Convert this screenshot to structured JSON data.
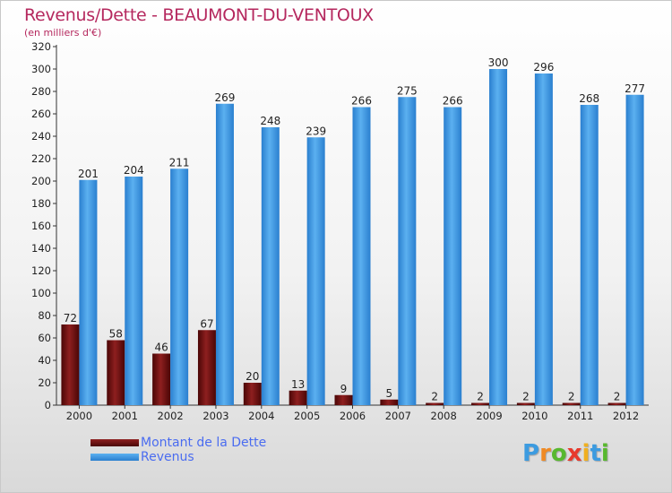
{
  "title": "Revenus/Dette - BEAUMONT-DU-VENTOUX",
  "subtitle": "(en milliers d'€)",
  "logo": {
    "letters": [
      "P",
      "r",
      "o",
      "x",
      "i",
      "t",
      "i"
    ],
    "colors": [
      "#3c9be0",
      "#f08a24",
      "#58b82e",
      "#e8392c",
      "#f0b020",
      "#3c9be0",
      "#58b82e"
    ]
  },
  "colors": {
    "dette": "#6b0d0d",
    "revenus": "#2f8fdc"
  },
  "chart_data": {
    "type": "bar",
    "categories": [
      "2000",
      "2001",
      "2002",
      "2003",
      "2004",
      "2005",
      "2006",
      "2007",
      "2008",
      "2009",
      "2010",
      "2011",
      "2012"
    ],
    "series": [
      {
        "name": "Montant de la Dette",
        "values": [
          72,
          58,
          46,
          67,
          20,
          13,
          9,
          5,
          2,
          2,
          2,
          2,
          2
        ]
      },
      {
        "name": "Revenus",
        "values": [
          201,
          204,
          211,
          269,
          248,
          239,
          266,
          275,
          266,
          300,
          296,
          268,
          277
        ]
      }
    ],
    "yticks": [
      0,
      20,
      40,
      60,
      80,
      100,
      120,
      140,
      160,
      180,
      200,
      220,
      240,
      260,
      280,
      300,
      320
    ],
    "ylim": [
      0,
      320
    ],
    "grid": false,
    "legend": "bottom-left"
  }
}
